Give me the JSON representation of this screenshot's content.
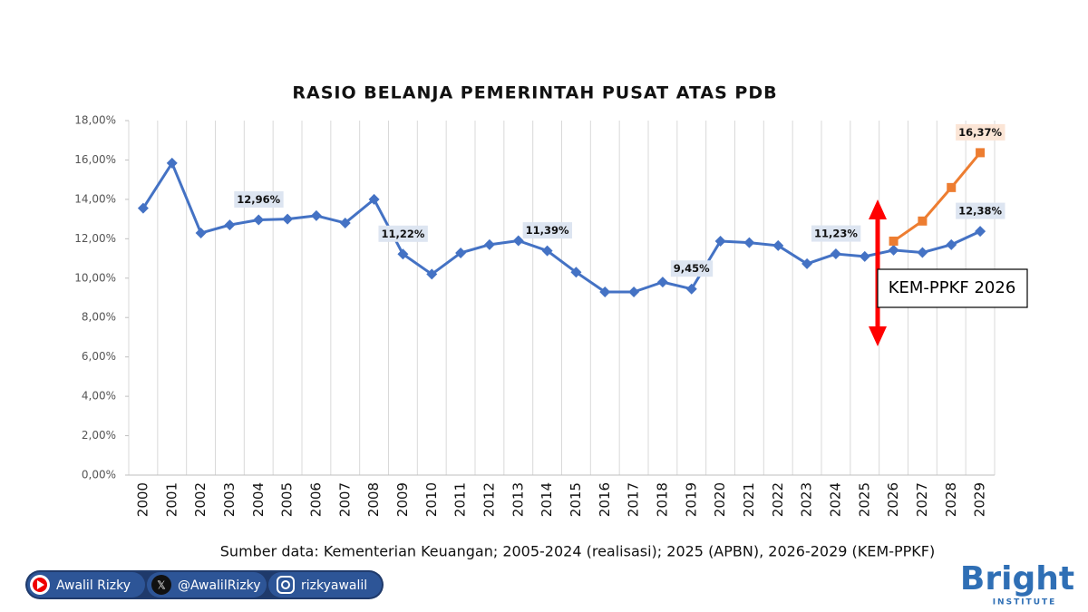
{
  "chart_data": {
    "type": "line",
    "title": "RASIO BELANJA PEMERINTAH PUSAT ATAS PDB",
    "categories": [
      "2000",
      "2001",
      "2002",
      "2003",
      "2004",
      "2005",
      "2006",
      "2007",
      "2008",
      "2009",
      "2010",
      "2011",
      "2012",
      "2013",
      "2014",
      "2015",
      "2016",
      "2017",
      "2018",
      "2019",
      "2020",
      "2021",
      "2022",
      "2023",
      "2024",
      "2025",
      "2026",
      "2027",
      "2028",
      "2029"
    ],
    "series": [
      {
        "color": "#4472c4",
        "marker": "diamond",
        "values": [
          13.55,
          15.84,
          12.29,
          12.7,
          12.96,
          13.0,
          13.17,
          12.8,
          14.0,
          11.22,
          10.2,
          11.28,
          11.7,
          11.9,
          11.39,
          10.3,
          9.3,
          9.3,
          9.8,
          9.45,
          11.88,
          11.8,
          11.65,
          10.73,
          11.23,
          11.1,
          11.42,
          11.3,
          11.7,
          12.38
        ],
        "value_labels": [
          null,
          null,
          null,
          null,
          "12,96%",
          null,
          null,
          null,
          null,
          "11,22%",
          null,
          null,
          null,
          null,
          "11,39%",
          null,
          null,
          null,
          null,
          "9,45%",
          null,
          null,
          null,
          null,
          "11,23%",
          null,
          null,
          null,
          null,
          "12,38%"
        ]
      },
      {
        "color": "#ed7d31",
        "marker": "square",
        "values": [
          null,
          null,
          null,
          null,
          null,
          null,
          null,
          null,
          null,
          null,
          null,
          null,
          null,
          null,
          null,
          null,
          null,
          null,
          null,
          null,
          null,
          null,
          null,
          null,
          null,
          null,
          11.88,
          12.9,
          14.6,
          16.37
        ],
        "value_labels": [
          null,
          null,
          null,
          null,
          null,
          null,
          null,
          null,
          null,
          null,
          null,
          null,
          null,
          null,
          null,
          null,
          null,
          null,
          null,
          null,
          null,
          null,
          null,
          null,
          null,
          null,
          null,
          null,
          null,
          "16,37%"
        ]
      }
    ],
    "ylim": [
      0,
      18
    ],
    "yticks": [
      {
        "value": 0,
        "label": "0,00%"
      },
      {
        "value": 2,
        "label": "2,00%"
      },
      {
        "value": 4,
        "label": "4,00%"
      },
      {
        "value": 6,
        "label": "6,00%"
      },
      {
        "value": 8,
        "label": "8,00%"
      },
      {
        "value": 10,
        "label": "10,00%"
      },
      {
        "value": 12,
        "label": "12,00%"
      },
      {
        "value": 14,
        "label": "14,00%"
      },
      {
        "value": 16,
        "label": "16,00%"
      },
      {
        "value": 18,
        "label": "18,00%"
      }
    ],
    "annotation": "KEM-PPKF 2026",
    "source": "Sumber data: Kementerian Keuangan; 2005-2024 (realisasi); 2025 (APBN), 2026-2029 (KEM-PPKF)"
  },
  "footer": {
    "youtube": "Awalil Rizky",
    "x": "@AwalilRizky",
    "instagram": "rizkyawalil",
    "logo": "Bright",
    "logo_sub": "INSTITUTE"
  }
}
